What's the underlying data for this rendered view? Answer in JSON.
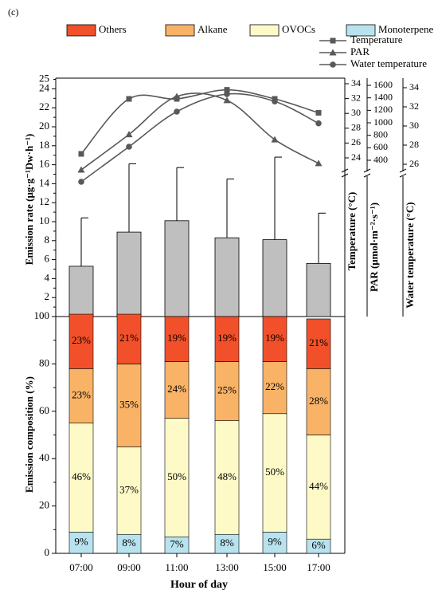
{
  "panel_label": "(c)",
  "colors": {
    "others": "#f2502a",
    "alkane": "#f9b367",
    "ovocs": "#fdfac8",
    "monoterpene": "#b8e3ee",
    "bar_total": "#bfbfbf",
    "line": "#595959"
  },
  "chart_data": [
    {
      "type": "bar",
      "categories": [
        "07:00",
        "09:00",
        "11:00",
        "13:00",
        "15:00",
        "17:00"
      ],
      "values": [
        5.3,
        8.9,
        10.1,
        8.3,
        8.1,
        5.6
      ],
      "error_upper": [
        10.4,
        16.1,
        15.7,
        14.5,
        16.8,
        10.9
      ],
      "ylabel": "Emission rate (μg·g⁻¹Dw·h⁻¹)",
      "ylim": [
        0,
        25
      ],
      "yticks": [
        "0",
        "2",
        "4",
        "6",
        "8",
        "10",
        "12",
        "14",
        "16",
        "18",
        "20",
        "22",
        "24"
      ]
    },
    {
      "type": "line",
      "categories": [
        "07:00",
        "09:00",
        "11:00",
        "13:00",
        "15:00",
        "17:00"
      ],
      "legend": [
        "Temperature",
        "PAR",
        "Water temperature"
      ],
      "series": [
        {
          "name": "Temperature",
          "axis": "Temperature (°C)",
          "ylim": [
            19,
            34
          ],
          "ticks": [
            "24",
            "26",
            "28",
            "30",
            "32",
            "34"
          ],
          "values": [
            25.5,
            32.2,
            32.2,
            33.3,
            32.2,
            30.5
          ],
          "marker": "square"
        },
        {
          "name": "PAR",
          "axis": "PAR (μmol·m⁻²·s⁻¹)",
          "ylim": [
            0,
            1700
          ],
          "ticks": [
            "400",
            "600",
            "800",
            "1000",
            "1200",
            "1400",
            "1600"
          ],
          "values": [
            300,
            850,
            1440,
            1380,
            770,
            400
          ],
          "marker": "triangle"
        },
        {
          "name": "Water temperature",
          "axis": "Water temperature (°C)",
          "ylim": [
            25,
            35
          ],
          "ticks": [
            "26",
            "28",
            "30",
            "32",
            "34"
          ],
          "values": [
            26.5,
            28.9,
            31.3,
            32.5,
            32.0,
            30.5
          ],
          "marker": "circle"
        }
      ]
    },
    {
      "type": "bar",
      "stacked": true,
      "categories": [
        "07:00",
        "09:00",
        "11:00",
        "13:00",
        "15:00",
        "17:00"
      ],
      "xlabel": "Hour of day",
      "ylabel": "Emission composition (%)",
      "ylim": [
        0,
        100
      ],
      "yticks": [
        "0",
        "20",
        "40",
        "60",
        "80",
        "100"
      ],
      "legend": [
        "Others",
        "Alkane",
        "OVOCs",
        "Monoterpene"
      ],
      "series": [
        {
          "name": "Monoterpene",
          "values": [
            9,
            8,
            7,
            8,
            9,
            6
          ],
          "labels": [
            "9%",
            "8%",
            "7%",
            "8%",
            "9%",
            "6%"
          ]
        },
        {
          "name": "OVOCs",
          "values": [
            46,
            37,
            50,
            48,
            50,
            44
          ],
          "labels": [
            "46%",
            "37%",
            "50%",
            "48%",
            "50%",
            "44%"
          ]
        },
        {
          "name": "Alkane",
          "values": [
            23,
            35,
            24,
            25,
            22,
            28
          ],
          "labels": [
            "23%",
            "35%",
            "24%",
            "25%",
            "22%",
            "28%"
          ]
        },
        {
          "name": "Others",
          "values": [
            23,
            21,
            19,
            19,
            19,
            21
          ],
          "labels": [
            "23%",
            "21%",
            "19%",
            "19%",
            "19%",
            "21%"
          ]
        }
      ]
    }
  ]
}
